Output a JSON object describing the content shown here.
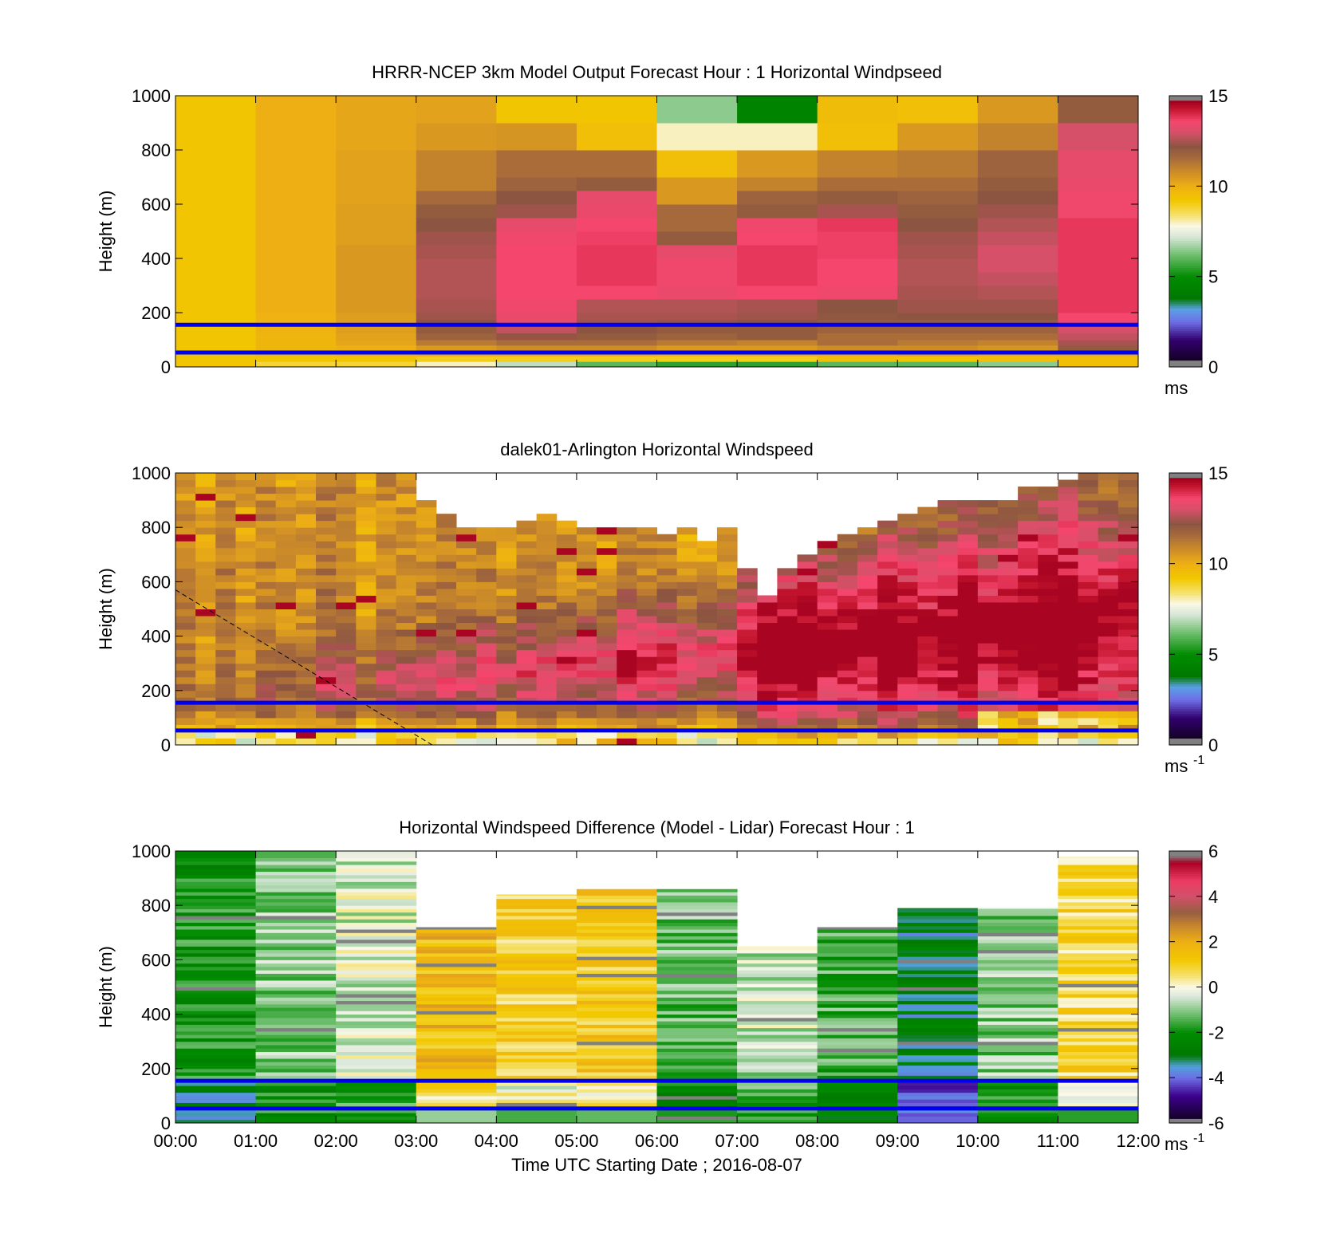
{
  "chart_data": [
    {
      "type": "heatmap",
      "title": "HRRR-NCEP 3km Model Output   Forecast Hour : 1 Horizontal Windpseed",
      "ylabel": "Height (m)",
      "xlabel": "",
      "ylim": [
        0,
        1000
      ],
      "yticks": [
        "0",
        "200",
        "400",
        "600",
        "800",
        "1000"
      ],
      "xticks": [
        "00:00",
        "01:00",
        "02:00",
        "03:00",
        "04:00",
        "05:00",
        "06:00",
        "07:00",
        "08:00",
        "09:00",
        "10:00",
        "11:00",
        "12:00"
      ],
      "x_hours": [
        0,
        1,
        2,
        3,
        4,
        5,
        6,
        7,
        8,
        9,
        10,
        11,
        12
      ],
      "show_xtick_labels": false,
      "row_edges_m": [
        0,
        20,
        40,
        60,
        80,
        100,
        125,
        150,
        175,
        200,
        250,
        300,
        350,
        400,
        450,
        500,
        550,
        600,
        650,
        700,
        800,
        900,
        1000
      ],
      "values_ms": [
        [
          9.3,
          9.3,
          9.3,
          9.3,
          9.3,
          9.3,
          9.3,
          9.3,
          9.3,
          9.3,
          9.3,
          9.3,
          9.3,
          9.3,
          9.3,
          9.3,
          9.3,
          9.3,
          9.3,
          9.3,
          9.3,
          9.3
        ],
        [
          8.8,
          9.3,
          9.6,
          9.8,
          9.8,
          9.8,
          9.9,
          9.9,
          9.9,
          10.0,
          10.0,
          10.0,
          10.0,
          10.0,
          10.0,
          10.0,
          10.0,
          10.0,
          10.0,
          10.0,
          10.0,
          10.0
        ],
        [
          8.8,
          9.3,
          9.8,
          10.0,
          10.2,
          10.3,
          10.4,
          10.4,
          10.4,
          10.5,
          10.5,
          10.5,
          10.5,
          10.5,
          10.4,
          10.4,
          10.4,
          10.3,
          10.3,
          10.3,
          10.2,
          10.2
        ],
        [
          8.0,
          9.0,
          10.0,
          10.5,
          11.2,
          11.8,
          12.0,
          12.2,
          12.4,
          12.5,
          12.6,
          12.6,
          12.6,
          12.5,
          12.4,
          12.2,
          12.0,
          11.6,
          11.0,
          11.0,
          10.5,
          10.3
        ],
        [
          7.0,
          9.0,
          10.0,
          10.8,
          11.5,
          12.3,
          12.8,
          13.2,
          13.4,
          13.5,
          13.6,
          13.6,
          13.6,
          13.6,
          13.5,
          13.3,
          12.4,
          12.2,
          11.8,
          11.5,
          10.6,
          9.3
        ],
        [
          6.0,
          9.0,
          10.0,
          10.8,
          11.5,
          12.0,
          12.2,
          12.4,
          12.5,
          12.6,
          13.6,
          13.8,
          13.8,
          13.8,
          13.7,
          13.6,
          13.4,
          13.3,
          12.0,
          11.5,
          9.5,
          9.3
        ],
        [
          5.5,
          9.0,
          9.8,
          10.5,
          11.2,
          11.8,
          12.0,
          12.3,
          12.5,
          12.6,
          13.4,
          13.5,
          13.5,
          13.3,
          12.0,
          11.6,
          11.6,
          10.5,
          10.5,
          9.5,
          8.0,
          6.5
        ],
        [
          5.5,
          9.0,
          10.0,
          10.5,
          11.0,
          12.0,
          12.0,
          12.2,
          12.4,
          12.5,
          13.6,
          13.8,
          13.8,
          13.8,
          13.6,
          13.5,
          12.0,
          11.8,
          11.0,
          10.5,
          8.0,
          4.5
        ],
        [
          6.0,
          9.5,
          10.0,
          10.8,
          11.5,
          11.5,
          11.8,
          12.0,
          12.1,
          12.2,
          13.5,
          13.6,
          13.6,
          13.7,
          13.7,
          13.8,
          12.5,
          12.0,
          11.5,
          11.0,
          9.5,
          9.6
        ],
        [
          6.0,
          9.3,
          10.2,
          10.8,
          11.2,
          11.5,
          11.8,
          12.0,
          12.2,
          12.4,
          12.5,
          12.6,
          12.6,
          12.5,
          12.4,
          12.2,
          12.0,
          11.8,
          11.5,
          11.2,
          10.5,
          9.5
        ],
        [
          6.5,
          9.5,
          10.0,
          10.6,
          11.0,
          11.5,
          11.8,
          12.0,
          12.2,
          12.4,
          12.6,
          12.8,
          13.0,
          13.0,
          12.8,
          12.6,
          12.4,
          12.2,
          12.0,
          11.8,
          11.0,
          10.5
        ],
        [
          9.5,
          9.5,
          10.0,
          12.0,
          12.5,
          12.8,
          13.0,
          13.5,
          13.6,
          13.8,
          13.8,
          13.8,
          13.8,
          13.8,
          13.8,
          13.8,
          13.5,
          13.5,
          13.4,
          13.3,
          13.0,
          12.0
        ]
      ],
      "lines": [
        {
          "y": [
            53,
            53
          ]
        },
        {
          "y": [
            155,
            155
          ]
        }
      ],
      "colorbar": {
        "min": 0,
        "max": 15,
        "ticks": [
          "0",
          "5",
          "10",
          "15"
        ],
        "unit": "ms",
        "unit_sup": ""
      }
    },
    {
      "type": "heatmap",
      "title": "dalek01-Arlington  Horizontal Windspeed",
      "ylabel": "Height (m)",
      "xlabel": "",
      "ylim": [
        0,
        1000
      ],
      "yticks": [
        "0",
        "200",
        "400",
        "600",
        "800",
        "1000"
      ],
      "xticks": [
        "00:00",
        "01:00",
        "02:00",
        "03:00",
        "04:00",
        "05:00",
        "06:00",
        "07:00",
        "08:00",
        "09:00",
        "10:00",
        "11:00",
        "12:00"
      ],
      "x_hours": [
        0,
        1,
        2,
        3,
        4,
        5,
        6,
        7,
        8,
        9,
        10,
        11,
        12
      ],
      "show_xtick_labels": false,
      "time_step_h": 0.25,
      "height_step_m": 25,
      "top_height_m": [
        1000,
        1000,
        1000,
        1000,
        1000,
        1000,
        1000,
        1000,
        1000,
        1000,
        1000,
        1000,
        900,
        850,
        800,
        780,
        800,
        820,
        840,
        820,
        800,
        800,
        780,
        790,
        760,
        780,
        740,
        780,
        650,
        550,
        640,
        700,
        740,
        770,
        780,
        820,
        850,
        870,
        880,
        900,
        900,
        900,
        930,
        950,
        970,
        980,
        1000,
        1000
      ],
      "base_profile_ms": [
        [
          0,
          6.5
        ],
        [
          50,
          9.5
        ],
        [
          120,
          10.8
        ],
        [
          300,
          11.0
        ],
        [
          600,
          10.8
        ],
        [
          1000,
          10.5
        ]
      ],
      "lines": [
        {
          "y": [
            53,
            53
          ]
        },
        {
          "y": [
            155,
            155
          ]
        }
      ],
      "dashed_line": {
        "x_hours": [
          0.0,
          3.2
        ],
        "y": [
          570,
          0
        ]
      },
      "colorbar": {
        "min": 0,
        "max": 15,
        "ticks": [
          "0",
          "5",
          "10",
          "15"
        ],
        "unit": "ms",
        "unit_sup": "-1"
      }
    },
    {
      "type": "heatmap",
      "title": "Horizontal Windspeed Difference (Model - Lidar) Forecast Hour : 1",
      "ylabel": "Height (m)",
      "xlabel": "Time UTC  Starting Date ; 2016-08-07",
      "ylim": [
        0,
        1000
      ],
      "yticks": [
        "0",
        "200",
        "400",
        "600",
        "800",
        "1000"
      ],
      "xticks": [
        "00:00",
        "01:00",
        "02:00",
        "03:00",
        "04:00",
        "05:00",
        "06:00",
        "07:00",
        "08:00",
        "09:00",
        "10:00",
        "11:00",
        "12:00"
      ],
      "x_hours": [
        0,
        1,
        2,
        3,
        4,
        5,
        6,
        7,
        8,
        9,
        10,
        11,
        12
      ],
      "show_xtick_labels": true,
      "column_tops_m": [
        1000,
        1000,
        1000,
        720,
        840,
        860,
        860,
        650,
        720,
        790,
        790,
        980
      ],
      "column_mean_diff_ms": [
        -2.0,
        -1.0,
        -0.4,
        1.6,
        1.0,
        1.2,
        -1.2,
        -0.6,
        -1.5,
        -3.0,
        -1.0,
        0.8
      ],
      "lines": [
        {
          "y": [
            53,
            53
          ]
        },
        {
          "y": [
            155,
            155
          ]
        }
      ],
      "colorbar": {
        "min": -6,
        "max": 6,
        "ticks": [
          "-6",
          "-4",
          "-2",
          "0",
          "2",
          "4",
          "6"
        ],
        "unit": "ms",
        "unit_sup": "-1"
      }
    }
  ],
  "colors": {
    "reference_line": "#0000ee",
    "missing_fill": "#ffffff",
    "dashed_line": "#000000"
  }
}
